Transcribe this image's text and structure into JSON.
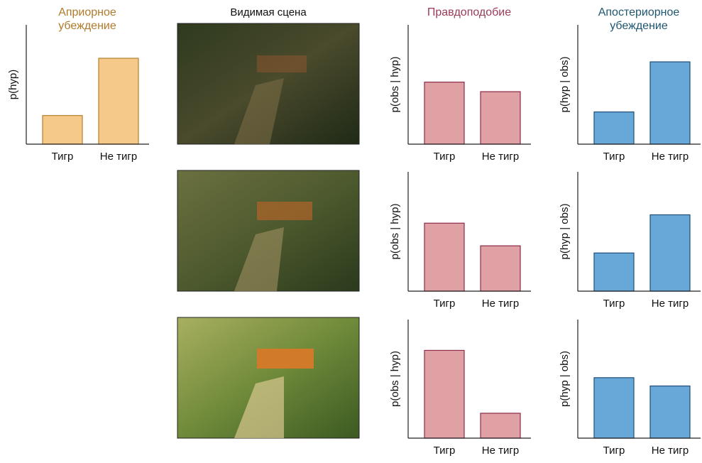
{
  "scene_title": "Видимая сцена",
  "chart_data": [
    {
      "type": "bar",
      "title": "Априорное убеждение",
      "ylabel": "p(hyp)",
      "categories": [
        "Тигр",
        "Не тигр"
      ],
      "values": [
        0.24,
        0.72
      ],
      "color": "#f5c98a",
      "edgecolor": "#b5802e",
      "title_color": "#b07a2a",
      "ylim": [
        0,
        1
      ]
    },
    {
      "type": "bar",
      "title": "Правдоподобие",
      "ylabel": "p(obs | hyp)",
      "categories": [
        "Тигр",
        "Не тигр"
      ],
      "values": [
        0.52,
        0.44
      ],
      "color": "#e0a1a5",
      "edgecolor": "#8c2b4a",
      "title_color": "#9b3b57",
      "ylim": [
        0,
        1
      ]
    },
    {
      "type": "bar",
      "ylabel": "p(obs | hyp)",
      "categories": [
        "Тигр",
        "Не тигр"
      ],
      "values": [
        0.57,
        0.38
      ],
      "color": "#e0a1a5",
      "edgecolor": "#8c2b4a",
      "ylim": [
        0,
        1
      ]
    },
    {
      "type": "bar",
      "ylabel": "p(obs | hyp)",
      "categories": [
        "Тигр",
        "Не тигр"
      ],
      "values": [
        0.74,
        0.21
      ],
      "color": "#e0a1a5",
      "edgecolor": "#8c2b4a",
      "ylim": [
        0,
        1
      ]
    },
    {
      "type": "bar",
      "title": "Апостериорное убеждение",
      "ylabel": "p(hyp | obs)",
      "categories": [
        "Тигр",
        "Не тигр"
      ],
      "values": [
        0.27,
        0.69
      ],
      "color": "#68a8d8",
      "edgecolor": "#1f4e79",
      "title_color": "#1f5670",
      "ylim": [
        0,
        1
      ]
    },
    {
      "type": "bar",
      "ylabel": "p(hyp | obs)",
      "categories": [
        "Тигр",
        "Не тигр"
      ],
      "values": [
        0.32,
        0.64
      ],
      "color": "#68a8d8",
      "edgecolor": "#1f4e79",
      "ylim": [
        0,
        1
      ]
    },
    {
      "type": "bar",
      "ylabel": "p(hyp | obs)",
      "categories": [
        "Тигр",
        "Не тигр"
      ],
      "values": [
        0.51,
        0.44
      ],
      "color": "#68a8d8",
      "edgecolor": "#1f4e79",
      "ylim": [
        0,
        1
      ]
    }
  ]
}
